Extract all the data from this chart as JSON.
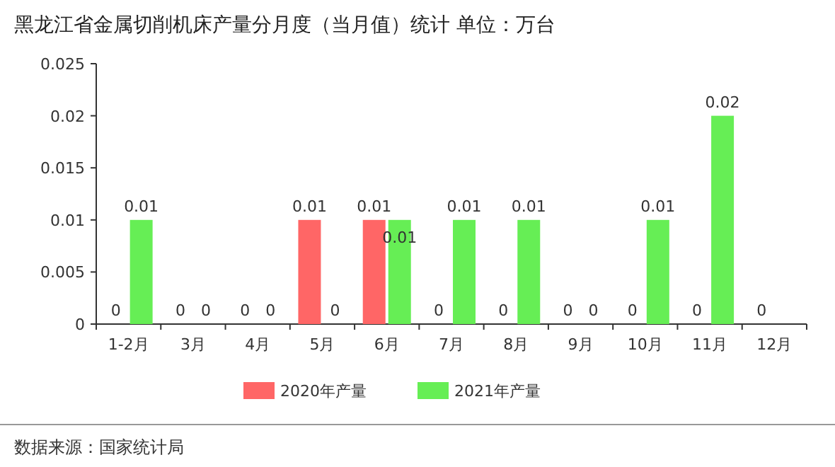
{
  "chart_data": {
    "type": "bar",
    "title": "黑龙江省金属切削机床产量分月度（当月值）统计 单位：万台",
    "categories": [
      "1-2月",
      "3月",
      "4月",
      "5月",
      "6月",
      "7月",
      "8月",
      "9月",
      "10月",
      "11月",
      "12月"
    ],
    "series": [
      {
        "name": "2020年产量",
        "color": "#ff6666",
        "values": [
          0,
          0,
          0,
          0.01,
          0.01,
          0,
          0,
          0,
          0,
          0,
          0
        ]
      },
      {
        "name": "2021年产量",
        "color": "#66ee55",
        "values": [
          0.01,
          0,
          0,
          0,
          0.01,
          0.01,
          0.01,
          0,
          0.01,
          0.02,
          null
        ]
      }
    ],
    "ylim": [
      0,
      0.025
    ],
    "yticks": [
      0,
      0.005,
      0.01,
      0.015,
      0.02,
      0.025
    ],
    "data_labels": true,
    "grid": false,
    "legend": "bottom",
    "annotations": [
      "数据来源：国家统计局"
    ]
  }
}
